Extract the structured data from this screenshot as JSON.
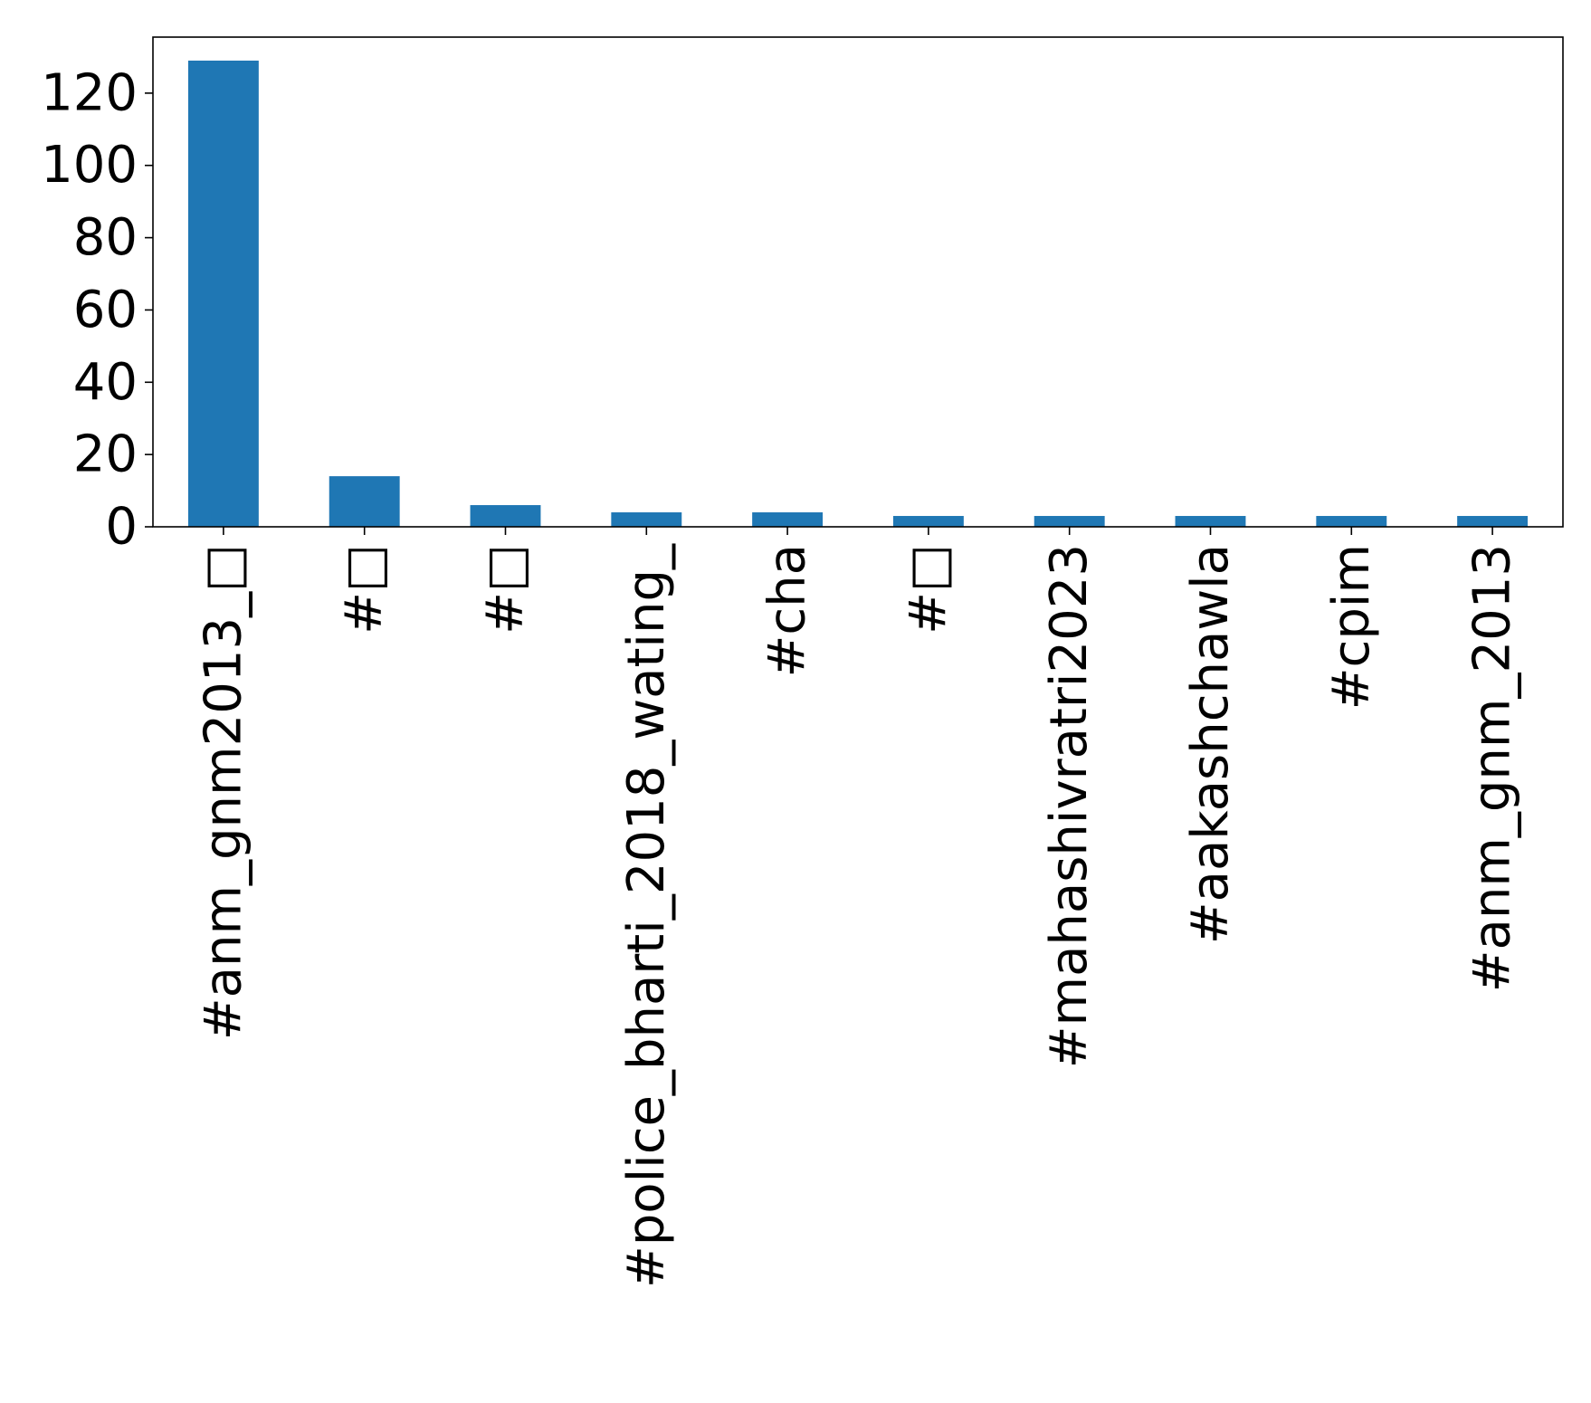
{
  "chart_data": {
    "type": "bar",
    "title": "",
    "xlabel": "",
    "ylabel": "",
    "categories": [
      "#anm_gnm2013_□",
      "#□",
      "#□",
      "#police_bharti_2018_wating_",
      "#cha",
      "#□",
      "#mahashivratri2023",
      "#aakashchawla",
      "#cpim",
      "#anm_gnm_2013"
    ],
    "values": [
      129,
      14,
      6,
      4,
      4,
      3,
      3,
      3,
      3,
      3
    ],
    "ylim": [
      0,
      135.5
    ],
    "yticks": [
      0,
      20,
      40,
      60,
      80,
      100,
      120
    ],
    "bar_color": "#1f77b4",
    "grid": false,
    "legend": "none"
  }
}
